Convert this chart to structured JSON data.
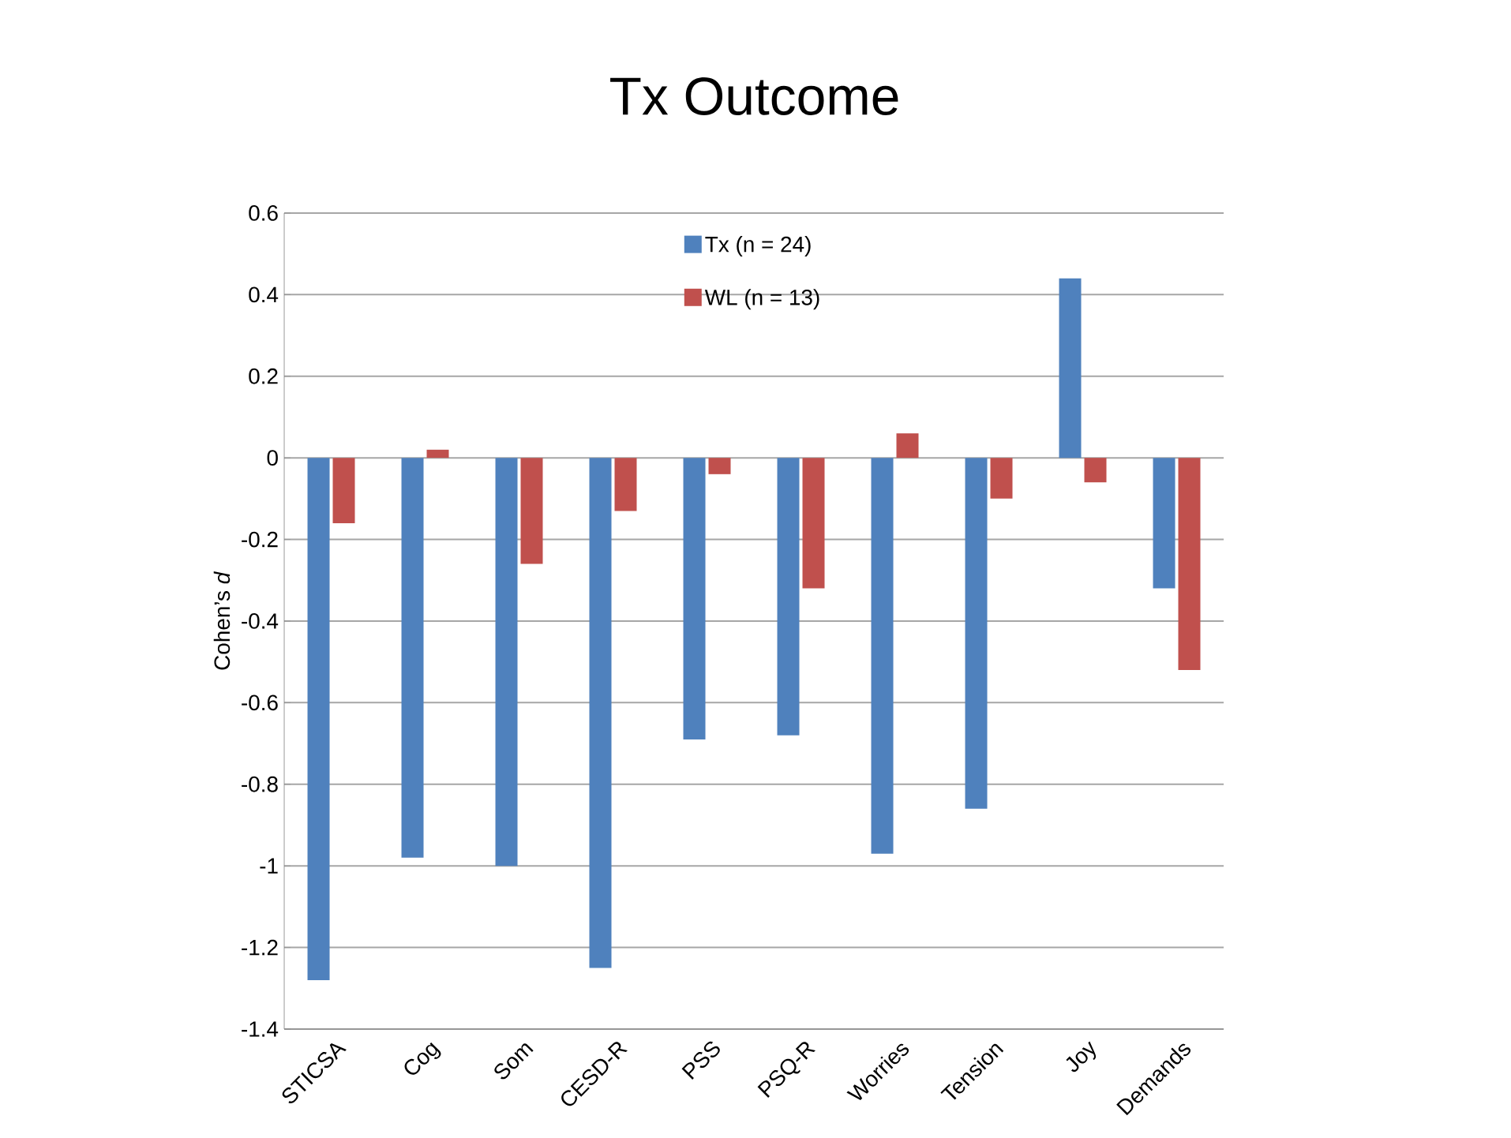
{
  "chart_data": {
    "type": "bar",
    "title": "Tx Outcome",
    "ylabel": "Cohen’s *d*",
    "categories": [
      "STICSA",
      "Cog",
      "Som",
      "CESD-R",
      "PSS",
      "PSQ-R",
      "Worries",
      "Tension",
      "Joy",
      "Demands"
    ],
    "series": [
      {
        "name": "Tx (n = 24)",
        "color": "#4f81bd",
        "values": [
          -1.28,
          -0.98,
          -1.0,
          -1.25,
          -0.69,
          -0.68,
          -0.97,
          -0.86,
          0.44,
          -0.32
        ]
      },
      {
        "name": "WL (n = 13)",
        "color": "#c0504d",
        "values": [
          -0.16,
          0.02,
          -0.26,
          -0.13,
          -0.04,
          -0.32,
          0.06,
          -0.1,
          -0.06,
          -0.52
        ]
      }
    ],
    "ylim": [
      -1.4,
      0.6
    ],
    "yticks": [
      -1.4,
      -1.2,
      -1,
      -0.8,
      -0.6,
      -0.4,
      -0.2,
      0,
      0.2,
      0.4,
      0.6
    ],
    "grid": "y",
    "legend": "top"
  }
}
